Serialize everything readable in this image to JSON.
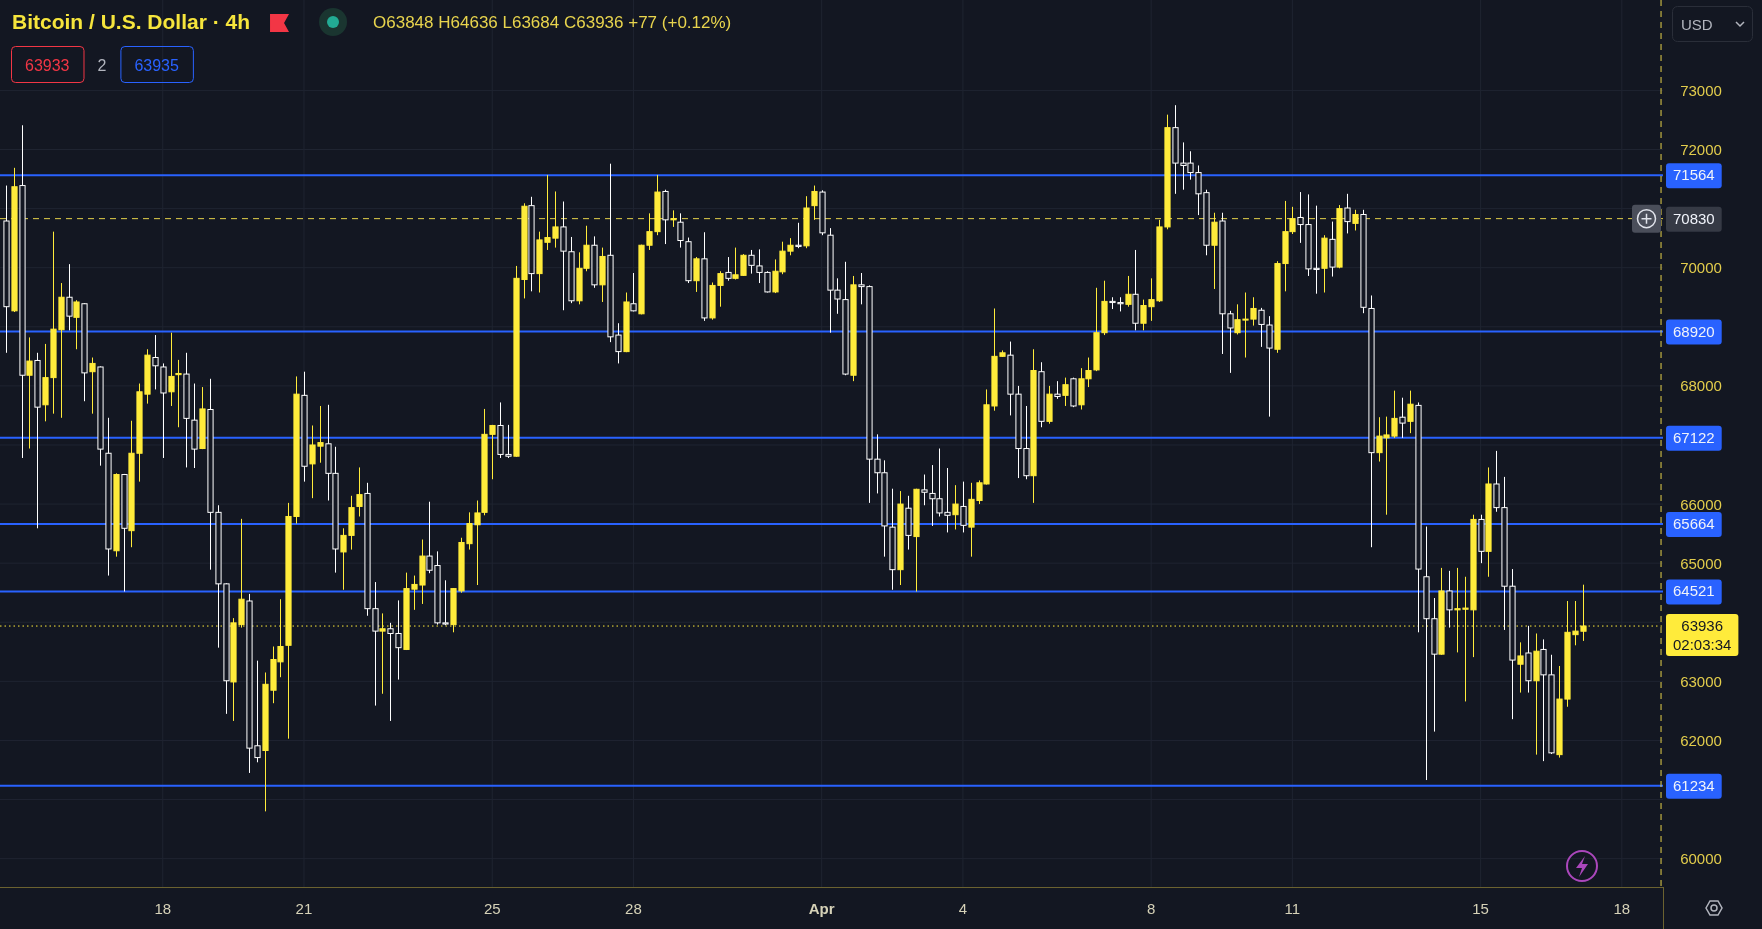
{
  "chart_data": {
    "type": "candlestick",
    "title": "Bitcoin / U.S. Dollar · 4h",
    "subtitle": "O63848 H64636 L63684 C63936 +77 (+0.12%)",
    "annotations": [
      "63933",
      "2",
      "63935",
      "USD"
    ],
    "x": [
      "--03-14T16:00",
      "--03-14T20:00",
      "--03-15T00:00",
      "--03-15T04:00",
      "--03-15T08:00",
      "--03-15T12:00",
      "--03-15T16:00",
      "--03-15T20:00",
      "--03-16T00:00",
      "--03-16T04:00",
      "--03-16T08:00",
      "--03-16T12:00",
      "--03-16T16:00",
      "--03-16T20:00",
      "--03-17T00:00",
      "--03-17T04:00",
      "--03-17T08:00",
      "--03-17T12:00",
      "--03-17T16:00",
      "--03-17T20:00",
      "--03-18T00:00",
      "--03-18T04:00",
      "--03-18T08:00",
      "--03-18T12:00",
      "--03-18T16:00",
      "--03-18T20:00",
      "--03-19T00:00",
      "--03-19T04:00",
      "--03-19T08:00",
      "--03-19T12:00",
      "--03-19T16:00",
      "--03-19T20:00",
      "--03-20T00:00",
      "--03-20T04:00",
      "--03-20T08:00",
      "--03-20T12:00",
      "--03-20T16:00",
      "--03-20T20:00",
      "--03-21T00:00",
      "--03-21T04:00",
      "--03-21T08:00",
      "--03-21T12:00",
      "--03-21T16:00",
      "--03-21T20:00",
      "--03-22T00:00",
      "--03-22T04:00",
      "--03-22T08:00",
      "--03-22T12:00",
      "--03-22T16:00",
      "--03-22T20:00",
      "--03-23T00:00",
      "--03-23T04:00",
      "--03-23T08:00",
      "--03-23T12:00",
      "--03-23T16:00",
      "--03-23T20:00",
      "--03-24T00:00",
      "--03-24T04:00",
      "--03-24T08:00",
      "--03-24T12:00",
      "--03-24T16:00",
      "--03-24T20:00",
      "--03-25T00:00",
      "--03-25T04:00",
      "--03-25T08:00",
      "--03-25T12:00",
      "--03-25T16:00",
      "--03-25T20:00",
      "--03-26T00:00",
      "--03-26T04:00",
      "--03-26T08:00",
      "--03-26T12:00",
      "--03-26T16:00",
      "--03-26T20:00",
      "--03-27T00:00",
      "--03-27T04:00",
      "--03-27T08:00",
      "--03-27T12:00",
      "--03-27T16:00",
      "--03-27T20:00",
      "--03-28T00:00",
      "--03-28T04:00",
      "--03-28T08:00",
      "--03-28T12:00",
      "--03-28T16:00",
      "--03-28T20:00",
      "--03-29T00:00",
      "--03-29T04:00",
      "--03-29T08:00",
      "--03-29T12:00",
      "--03-29T16:00",
      "--03-29T20:00",
      "--03-30T00:00",
      "--03-30T04:00",
      "--03-30T08:00",
      "--03-30T12:00",
      "--03-30T16:00",
      "--03-30T20:00",
      "--03-31T00:00",
      "--03-31T04:00",
      "--03-31T08:00",
      "--03-31T12:00",
      "--03-31T16:00",
      "--03-31T20:00",
      "--04-01T00:00",
      "--04-01T04:00",
      "--04-01T08:00",
      "--04-01T12:00",
      "--04-01T16:00",
      "--04-01T20:00",
      "--04-02T00:00",
      "--04-02T04:00",
      "--04-02T08:00",
      "--04-02T12:00",
      "--04-02T16:00",
      "--04-02T20:00",
      "--04-03T00:00",
      "--04-03T04:00",
      "--04-03T08:00",
      "--04-03T12:00",
      "--04-03T16:00",
      "--04-03T20:00",
      "--04-04T00:00",
      "--04-04T04:00",
      "--04-04T08:00",
      "--04-04T12:00",
      "--04-04T16:00",
      "--04-04T20:00",
      "--04-05T00:00",
      "--04-05T04:00",
      "--04-05T08:00",
      "--04-05T12:00",
      "--04-05T16:00",
      "--04-05T20:00",
      "--04-06T00:00",
      "--04-06T04:00",
      "--04-06T08:00",
      "--04-06T12:00",
      "--04-06T16:00",
      "--04-06T20:00",
      "--04-07T00:00",
      "--04-07T04:00",
      "--04-07T08:00",
      "--04-07T12:00",
      "--04-07T16:00",
      "--04-07T20:00",
      "--04-08T00:00",
      "--04-08T04:00",
      "--04-08T08:00",
      "--04-08T12:00",
      "--04-08T16:00",
      "--04-08T20:00",
      "--04-09T00:00",
      "--04-09T04:00",
      "--04-09T08:00",
      "--04-09T12:00",
      "--04-09T16:00",
      "--04-09T20:00",
      "--04-10T00:00",
      "--04-10T04:00",
      "--04-10T08:00",
      "--04-10T12:00",
      "--04-10T16:00",
      "--04-10T20:00",
      "--04-11T00:00",
      "--04-11T04:00",
      "--04-11T08:00",
      "--04-11T12:00",
      "--04-11T16:00",
      "--04-11T20:00",
      "--04-12T00:00",
      "--04-12T04:00",
      "--04-12T08:00",
      "--04-12T12:00",
      "--04-12T16:00",
      "--04-12T20:00",
      "--04-13T00:00",
      "--04-13T04:00",
      "--04-13T08:00",
      "--04-13T12:00",
      "--04-13T16:00",
      "--04-13T20:00",
      "--04-14T00:00",
      "--04-14T04:00",
      "--04-14T08:00",
      "--04-14T12:00",
      "--04-14T16:00",
      "--04-14T20:00",
      "--04-15T00:00",
      "--04-15T04:00",
      "--04-15T08:00",
      "--04-15T12:00",
      "--04-15T16:00",
      "--04-15T20:00",
      "--04-16T00:00",
      "--04-16T04:00",
      "--04-16T08:00",
      "--04-16T12:00",
      "--04-16T16:00",
      "--04-16T20:00",
      "--04-17T00:00",
      "--04-17T04:00"
    ],
    "ohlc": [
      [
        70790,
        71390,
        68560,
        69340
      ],
      [
        69270,
        71690,
        69250,
        71370
      ],
      [
        71390,
        72410,
        66780,
        68180
      ],
      [
        68180,
        68820,
        66940,
        68420
      ],
      [
        68430,
        68560,
        65590,
        67640
      ],
      [
        67680,
        68710,
        67400,
        68140
      ],
      [
        68140,
        70610,
        67530,
        68960
      ],
      [
        68950,
        69740,
        67460,
        69500
      ],
      [
        69500,
        70060,
        68940,
        69180
      ],
      [
        69160,
        69450,
        68620,
        69420
      ],
      [
        69390,
        69400,
        67740,
        68220
      ],
      [
        68240,
        68480,
        67530,
        68380
      ],
      [
        68320,
        68330,
        66650,
        66930
      ],
      [
        66860,
        67460,
        64790,
        65240
      ],
      [
        65210,
        66520,
        65110,
        66500
      ],
      [
        66500,
        66510,
        64520,
        65590
      ],
      [
        65550,
        67410,
        65270,
        66860
      ],
      [
        66860,
        68040,
        66380,
        67900
      ],
      [
        67860,
        68620,
        67700,
        68520
      ],
      [
        68480,
        68860,
        67940,
        68340
      ],
      [
        68320,
        68380,
        66780,
        67880
      ],
      [
        67900,
        68900,
        67660,
        68160
      ],
      [
        68190,
        68440,
        67300,
        68210
      ],
      [
        68200,
        68560,
        66620,
        67450
      ],
      [
        67420,
        68040,
        66610,
        66930
      ],
      [
        66940,
        67980,
        66930,
        67610
      ],
      [
        67600,
        68120,
        64890,
        65860
      ],
      [
        65860,
        65980,
        63570,
        64650
      ],
      [
        64650,
        64660,
        62450,
        63010
      ],
      [
        62990,
        64070,
        62330,
        63990
      ],
      [
        63960,
        65750,
        63910,
        64390
      ],
      [
        64360,
        64480,
        61450,
        61870
      ],
      [
        61910,
        63350,
        61630,
        61710
      ],
      [
        61830,
        63150,
        60800,
        62950
      ],
      [
        62850,
        63590,
        62630,
        63370
      ],
      [
        63330,
        64390,
        63070,
        63590
      ],
      [
        63610,
        66020,
        62030,
        65790
      ],
      [
        65790,
        68160,
        65670,
        67860
      ],
      [
        67840,
        68240,
        66380,
        66640
      ],
      [
        66680,
        67330,
        66100,
        67000
      ],
      [
        66980,
        67660,
        66700,
        67040
      ],
      [
        67020,
        67680,
        66060,
        66520
      ],
      [
        66520,
        66970,
        64840,
        65240
      ],
      [
        65190,
        65590,
        64550,
        65470
      ],
      [
        65470,
        66140,
        65230,
        65940
      ],
      [
        65960,
        66620,
        65790,
        66160
      ],
      [
        66180,
        66360,
        64110,
        64230
      ],
      [
        64230,
        64680,
        62590,
        63850
      ],
      [
        63850,
        64150,
        62790,
        63890
      ],
      [
        63890,
        63990,
        62330,
        63810
      ],
      [
        63810,
        64370,
        63030,
        63570
      ],
      [
        63540,
        64840,
        63530,
        64570
      ],
      [
        64560,
        64790,
        64210,
        64640
      ],
      [
        64630,
        65400,
        64310,
        65120
      ],
      [
        65120,
        66040,
        64830,
        64880
      ],
      [
        64960,
        65200,
        63960,
        63990
      ],
      [
        63990,
        64710,
        63950,
        63970
      ],
      [
        63960,
        64580,
        63830,
        64570
      ],
      [
        64530,
        65430,
        64500,
        65350
      ],
      [
        65330,
        65860,
        65230,
        65670
      ],
      [
        65650,
        66060,
        64630,
        65850
      ],
      [
        65860,
        67610,
        65810,
        67180
      ],
      [
        67180,
        67340,
        66420,
        67330
      ],
      [
        67330,
        67720,
        66780,
        66840
      ],
      [
        66840,
        67340,
        66780,
        66810
      ],
      [
        66810,
        70030,
        66800,
        69820
      ],
      [
        69800,
        71090,
        69480,
        71040
      ],
      [
        71050,
        71200,
        69600,
        69900
      ],
      [
        69900,
        70610,
        69580,
        70470
      ],
      [
        70430,
        71570,
        70300,
        70510
      ],
      [
        70500,
        71290,
        70340,
        70690
      ],
      [
        70690,
        71120,
        69280,
        70280
      ],
      [
        70270,
        70520,
        69400,
        69440
      ],
      [
        69440,
        70260,
        69380,
        69990
      ],
      [
        69990,
        70710,
        69940,
        70380
      ],
      [
        70380,
        70530,
        69660,
        69710
      ],
      [
        69710,
        70340,
        69420,
        70190
      ],
      [
        70210,
        71760,
        68740,
        68830
      ],
      [
        68860,
        69060,
        68380,
        68580
      ],
      [
        68580,
        69580,
        68570,
        69420
      ],
      [
        69390,
        69910,
        69260,
        69270
      ],
      [
        69220,
        70390,
        69210,
        70380
      ],
      [
        70380,
        70920,
        70300,
        70610
      ],
      [
        70610,
        71570,
        70550,
        71280
      ],
      [
        71290,
        71320,
        70400,
        70810
      ],
      [
        70810,
        70970,
        70690,
        70830
      ],
      [
        70770,
        70920,
        70340,
        70460
      ],
      [
        70440,
        70510,
        69740,
        69780
      ],
      [
        69780,
        70180,
        69590,
        70150
      ],
      [
        70150,
        70600,
        69100,
        69150
      ],
      [
        69150,
        69750,
        69120,
        69700
      ],
      [
        69700,
        69940,
        69340,
        69900
      ],
      [
        69920,
        70180,
        69780,
        69820
      ],
      [
        69820,
        70340,
        69800,
        69880
      ],
      [
        69870,
        70230,
        69860,
        70210
      ],
      [
        70210,
        70300,
        69900,
        70040
      ],
      [
        70030,
        70310,
        69740,
        69920
      ],
      [
        69920,
        69940,
        69580,
        69590
      ],
      [
        69590,
        70140,
        69570,
        69940
      ],
      [
        69930,
        70440,
        69890,
        70280
      ],
      [
        70280,
        70500,
        70210,
        70380
      ],
      [
        70380,
        70760,
        70330,
        70360
      ],
      [
        70370,
        71210,
        70330,
        71010
      ],
      [
        71050,
        71390,
        70810,
        71290
      ],
      [
        71280,
        71310,
        70550,
        70590
      ],
      [
        70550,
        70670,
        68900,
        69620
      ],
      [
        69620,
        69820,
        69220,
        69470
      ],
      [
        69460,
        70100,
        68180,
        68200
      ],
      [
        68180,
        69860,
        68080,
        69710
      ],
      [
        69710,
        69910,
        69380,
        69680
      ],
      [
        69680,
        69700,
        66020,
        66760
      ],
      [
        66760,
        67180,
        66180,
        66530
      ],
      [
        66530,
        66740,
        65110,
        65630
      ],
      [
        65610,
        66260,
        64550,
        64890
      ],
      [
        64890,
        66220,
        64630,
        66000
      ],
      [
        65930,
        66140,
        65230,
        65470
      ],
      [
        65450,
        66260,
        64520,
        66250
      ],
      [
        66240,
        66500,
        65980,
        66200
      ],
      [
        66180,
        66660,
        65630,
        66090
      ],
      [
        66090,
        66940,
        65790,
        65850
      ],
      [
        65860,
        66610,
        65520,
        65810
      ],
      [
        65820,
        66320,
        65570,
        66000
      ],
      [
        65960,
        66380,
        65520,
        65640
      ],
      [
        65610,
        66360,
        65110,
        66080
      ],
      [
        66060,
        66400,
        66000,
        66360
      ],
      [
        66340,
        67940,
        66330,
        67680
      ],
      [
        67660,
        69310,
        67580,
        68500
      ],
      [
        68500,
        68600,
        68490,
        68560
      ],
      [
        68520,
        68750,
        67500,
        67860
      ],
      [
        67860,
        68000,
        66440,
        66940
      ],
      [
        66940,
        67660,
        66420,
        66480
      ],
      [
        66480,
        68620,
        66020,
        68260
      ],
      [
        68240,
        68400,
        67300,
        67400
      ],
      [
        67400,
        68000,
        67360,
        67860
      ],
      [
        67860,
        68080,
        67780,
        67820
      ],
      [
        67840,
        68140,
        67660,
        68020
      ],
      [
        68120,
        68140,
        67640,
        67660
      ],
      [
        67680,
        68300,
        67600,
        68120
      ],
      [
        68120,
        68480,
        67980,
        68260
      ],
      [
        68270,
        69660,
        68250,
        68900
      ],
      [
        68900,
        69780,
        68860,
        69430
      ],
      [
        69430,
        69500,
        69300,
        69410
      ],
      [
        69410,
        69500,
        69260,
        69390
      ],
      [
        69380,
        69860,
        69340,
        69550
      ],
      [
        69550,
        70300,
        68940,
        69060
      ],
      [
        69060,
        69460,
        68940,
        69360
      ],
      [
        69340,
        69820,
        69100,
        69460
      ],
      [
        69440,
        70810,
        69420,
        70690
      ],
      [
        70690,
        72590,
        70650,
        72370
      ],
      [
        72370,
        72750,
        71250,
        71770
      ],
      [
        71770,
        72120,
        71320,
        71730
      ],
      [
        71770,
        71970,
        71490,
        71610
      ],
      [
        71610,
        71730,
        70890,
        71250
      ],
      [
        71270,
        71320,
        70210,
        70380
      ],
      [
        70380,
        70930,
        69640,
        70770
      ],
      [
        70790,
        70930,
        68540,
        69220
      ],
      [
        69220,
        69270,
        68220,
        68980
      ],
      [
        68900,
        69380,
        68870,
        69120
      ],
      [
        69120,
        69580,
        68480,
        69130
      ],
      [
        69130,
        69500,
        69020,
        69310
      ],
      [
        69280,
        69320,
        68660,
        69040
      ],
      [
        69030,
        69180,
        67480,
        68640
      ],
      [
        68620,
        70110,
        68560,
        70070
      ],
      [
        70070,
        71130,
        69600,
        70610
      ],
      [
        70610,
        71030,
        70570,
        70830
      ],
      [
        70850,
        71280,
        70420,
        70730
      ],
      [
        70730,
        71240,
        69860,
        69980
      ],
      [
        69990,
        71050,
        69560,
        69970
      ],
      [
        69990,
        70550,
        69580,
        70500
      ],
      [
        70480,
        70780,
        69850,
        70010
      ],
      [
        70010,
        71060,
        69990,
        71000
      ],
      [
        71010,
        71250,
        70580,
        70780
      ],
      [
        70750,
        70980,
        70630,
        70900
      ],
      [
        70900,
        70980,
        69230,
        69330
      ],
      [
        69310,
        69530,
        65270,
        66870
      ],
      [
        66870,
        67470,
        66720,
        67150
      ],
      [
        67120,
        67480,
        65820,
        67170
      ],
      [
        67150,
        67920,
        67120,
        67450
      ],
      [
        67470,
        67800,
        67120,
        67370
      ],
      [
        67400,
        67920,
        67200,
        67690
      ],
      [
        67670,
        67720,
        63830,
        64900
      ],
      [
        64770,
        65620,
        61330,
        64060
      ],
      [
        64060,
        64410,
        62150,
        63460
      ],
      [
        63460,
        64920,
        63450,
        64530
      ],
      [
        64530,
        64870,
        63910,
        64210
      ],
      [
        64210,
        64920,
        63490,
        64230
      ],
      [
        64220,
        64770,
        62660,
        64240
      ],
      [
        64210,
        65820,
        63410,
        65740
      ],
      [
        65740,
        65820,
        65000,
        65200
      ],
      [
        65200,
        66620,
        64770,
        66340
      ],
      [
        66340,
        66900,
        65870,
        65940
      ],
      [
        65940,
        66460,
        63870,
        64610
      ],
      [
        64610,
        64900,
        62360,
        63360
      ],
      [
        63290,
        63660,
        62810,
        63430
      ],
      [
        63480,
        63940,
        62810,
        63010
      ],
      [
        63010,
        63810,
        61760,
        63510
      ],
      [
        63540,
        63710,
        61650,
        63110
      ],
      [
        63110,
        63450,
        61770,
        61790
      ],
      [
        61760,
        63260,
        61710,
        62700
      ],
      [
        62700,
        64360,
        62570,
        63830
      ],
      [
        63790,
        64360,
        63610,
        63850
      ],
      [
        63848,
        64636,
        63684,
        63936
      ]
    ],
    "xlim": [
      "--03-14T13:00",
      "--04-18T21:00"
    ],
    "xticks": [
      {
        "value": "--03-18",
        "label": "18"
      },
      {
        "value": "--03-21",
        "label": "21"
      },
      {
        "value": "--03-25",
        "label": "25"
      },
      {
        "value": "--03-28",
        "label": "28"
      },
      {
        "value": "--04-01",
        "label": "Apr"
      },
      {
        "value": "--04-04",
        "label": "4"
      },
      {
        "value": "--04-08",
        "label": "8"
      },
      {
        "value": "--04-11",
        "label": "11"
      },
      {
        "value": "--04-15",
        "label": "15"
      },
      {
        "value": "--04-18",
        "label": "18"
      }
    ],
    "ylim": [
      59520,
      74530
    ],
    "yticks": [
      60000,
      {
        "value": 61000,
        "label": null
      },
      62000,
      63000,
      {
        "value": 64000,
        "label": null
      },
      65000,
      66000,
      {
        "value": 67000,
        "label": null
      },
      68000,
      {
        "value": 69000,
        "label": null
      },
      70000,
      {
        "value": 71000,
        "label": null
      },
      72000,
      73000
    ],
    "grid": true,
    "ref_lines": [
      {
        "axis": "y",
        "value": 71564,
        "label": "71564",
        "color": "#2962ff",
        "line_style": "solid"
      },
      {
        "axis": "y",
        "value": 68920,
        "label": "68920",
        "color": "#2962ff",
        "line_style": "solid"
      },
      {
        "axis": "y",
        "value": 67122,
        "label": "67122",
        "color": "#2962ff",
        "line_style": "solid"
      },
      {
        "axis": "y",
        "value": 65664,
        "label": "65664",
        "color": "#2962ff",
        "line_style": "solid"
      },
      {
        "axis": "y",
        "value": 64521,
        "label": "64521",
        "color": "#2962ff",
        "line_style": "solid"
      },
      {
        "axis": "y",
        "value": 61234,
        "label": "61234",
        "color": "#2962ff",
        "line_style": "solid"
      },
      {
        "axis": "y",
        "value": 70830,
        "label": "70830",
        "color": "#e6d24a",
        "line_style": "dashed"
      },
      {
        "axis": "y",
        "value": 63936,
        "label": "63936\n02:03:34",
        "color": "#ffeb3b",
        "line_style": "dotted"
      },
      {
        "axis": "x",
        "value": "--04-18T20:00",
        "color": "#e6d24a",
        "line_style": "dashed"
      }
    ]
  }
}
